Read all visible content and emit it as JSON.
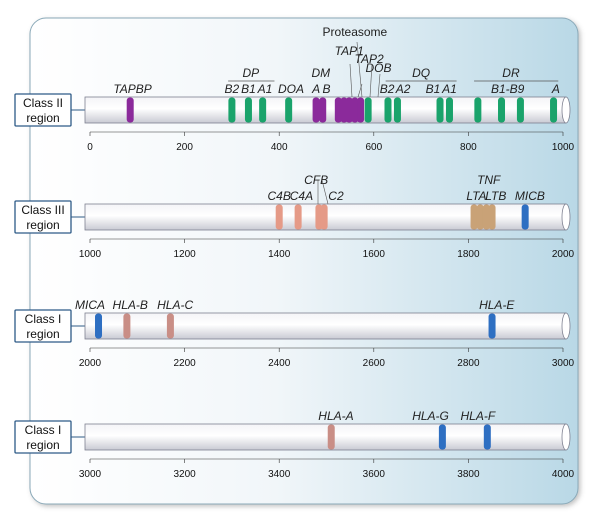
{
  "colors": {
    "class_ii": "#1aa36b",
    "class_ii_other": "#8b2a9b",
    "class_iii": "#e59a87",
    "class_iii_tnf": "#c9a277",
    "class_i": "#2e6fc2",
    "class_i_pseudo": "#c98e86"
  },
  "tracks": [
    {
      "label": [
        "Class II",
        "region"
      ],
      "range": [
        0,
        1000
      ],
      "ticks": [
        "0",
        "200",
        "400",
        "600",
        "800",
        "1000"
      ],
      "bands": [
        {
          "pos": 85,
          "color": "#8b2a9b"
        },
        {
          "pos": 300,
          "color": "#1aa36b"
        },
        {
          "pos": 335,
          "color": "#1aa36b"
        },
        {
          "pos": 365,
          "color": "#1aa36b"
        },
        {
          "pos": 420,
          "color": "#1aa36b"
        },
        {
          "pos": 478,
          "color": "#8b2a9b"
        },
        {
          "pos": 492,
          "color": "#8b2a9b"
        },
        {
          "pos": 525,
          "color": "#8b2a9b"
        },
        {
          "pos": 537,
          "color": "#8b2a9b"
        },
        {
          "pos": 548,
          "color": "#8b2a9b"
        },
        {
          "pos": 560,
          "color": "#8b2a9b"
        },
        {
          "pos": 572,
          "color": "#8b2a9b"
        },
        {
          "pos": 588,
          "color": "#1aa36b"
        },
        {
          "pos": 630,
          "color": "#1aa36b"
        },
        {
          "pos": 650,
          "color": "#1aa36b"
        },
        {
          "pos": 740,
          "color": "#1aa36b"
        },
        {
          "pos": 760,
          "color": "#1aa36b"
        },
        {
          "pos": 820,
          "color": "#1aa36b"
        },
        {
          "pos": 870,
          "color": "#1aa36b"
        },
        {
          "pos": 910,
          "color": "#1aa36b"
        },
        {
          "pos": 980,
          "color": "#1aa36b"
        }
      ],
      "labels": [
        {
          "text": "TAPBP",
          "pos": 90,
          "row": 2
        },
        {
          "text": "DP",
          "pos": 340,
          "row": 1,
          "overline": [
            292,
            390
          ]
        },
        {
          "text": "B2",
          "pos": 300,
          "row": 2
        },
        {
          "text": "B1",
          "pos": 335,
          "row": 2
        },
        {
          "text": "A1",
          "pos": 370,
          "row": 2
        },
        {
          "text": "DOA",
          "pos": 425,
          "row": 2
        },
        {
          "text": "DM",
          "pos": 488,
          "row": 1
        },
        {
          "text": "A",
          "pos": 478,
          "row": 2
        },
        {
          "text": "B",
          "pos": 500,
          "row": 2
        },
        {
          "text": "Proteasome",
          "pos": 560,
          "row": -2
        },
        {
          "text": "TAP1",
          "pos": 548,
          "row": -1
        },
        {
          "text": "TAP2",
          "pos": 590,
          "row": -0.4
        },
        {
          "text": "DOB",
          "pos": 610,
          "row": 0.4
        },
        {
          "text": "DQ",
          "pos": 700,
          "row": 1,
          "overline": [
            625,
            775
          ]
        },
        {
          "text": "B2",
          "pos": 628,
          "row": 2
        },
        {
          "text": "A2",
          "pos": 662,
          "row": 2
        },
        {
          "text": "B1",
          "pos": 725,
          "row": 2
        },
        {
          "text": "A1",
          "pos": 760,
          "row": 2
        },
        {
          "text": "DR",
          "pos": 890,
          "row": 1,
          "overline": [
            812,
            990
          ]
        },
        {
          "text": "B1-B9",
          "pos": 883,
          "row": 2
        },
        {
          "text": "A",
          "pos": 985,
          "row": 2
        }
      ]
    },
    {
      "label": [
        "Class III",
        "region"
      ],
      "range": [
        1000,
        2000
      ],
      "ticks": [
        "1000",
        "1200",
        "1400",
        "1600",
        "1800",
        "2000"
      ],
      "bands": [
        {
          "pos": 1400,
          "color": "#e59a87"
        },
        {
          "pos": 1440,
          "color": "#e59a87"
        },
        {
          "pos": 1484,
          "color": "#e59a87"
        },
        {
          "pos": 1495,
          "color": "#e59a87"
        },
        {
          "pos": 1812,
          "color": "#c9a277"
        },
        {
          "pos": 1825,
          "color": "#c9a277"
        },
        {
          "pos": 1838,
          "color": "#c9a277"
        },
        {
          "pos": 1850,
          "color": "#c9a277"
        },
        {
          "pos": 1920,
          "color": "#2e6fc2"
        }
      ],
      "labels": [
        {
          "text": "CFB",
          "pos": 1478,
          "row": 1
        },
        {
          "text": "C4B",
          "pos": 1400,
          "row": 2
        },
        {
          "text": "C4A",
          "pos": 1447,
          "row": 2
        },
        {
          "text": "C2",
          "pos": 1520,
          "row": 2
        },
        {
          "text": "TNF",
          "pos": 1843,
          "row": 1
        },
        {
          "text": "LTA",
          "pos": 1817,
          "row": 2
        },
        {
          "text": "LTB",
          "pos": 1858,
          "row": 2
        },
        {
          "text": "MICB",
          "pos": 1930,
          "row": 2
        }
      ]
    },
    {
      "label": [
        "Class I",
        "region"
      ],
      "range": [
        2000,
        3000
      ],
      "ticks": [
        "2000",
        "2200",
        "2400",
        "2600",
        "2800",
        "3000"
      ],
      "bands": [
        {
          "pos": 2018,
          "color": "#2e6fc2"
        },
        {
          "pos": 2078,
          "color": "#c98e86"
        },
        {
          "pos": 2170,
          "color": "#c98e86"
        },
        {
          "pos": 2850,
          "color": "#2e6fc2"
        }
      ],
      "labels": [
        {
          "text": "MICA",
          "pos": 2000,
          "row": 2
        },
        {
          "text": "HLA-B",
          "pos": 2085,
          "row": 2
        },
        {
          "text": "HLA-C",
          "pos": 2180,
          "row": 2
        },
        {
          "text": "HLA-E",
          "pos": 2860,
          "row": 2
        }
      ]
    },
    {
      "label": [
        "Class I",
        "region"
      ],
      "range": [
        3000,
        4000
      ],
      "ticks": [
        "3000",
        "3200",
        "3400",
        "3600",
        "3800",
        "4000"
      ],
      "bands": [
        {
          "pos": 3510,
          "color": "#c98e86"
        },
        {
          "pos": 3745,
          "color": "#2e6fc2"
        },
        {
          "pos": 3840,
          "color": "#2e6fc2"
        }
      ],
      "labels": [
        {
          "text": "HLA-A",
          "pos": 3520,
          "row": 2
        },
        {
          "text": "HLA-G",
          "pos": 3720,
          "row": 2
        },
        {
          "text": "HLA-F",
          "pos": 3820,
          "row": 2
        }
      ]
    }
  ]
}
